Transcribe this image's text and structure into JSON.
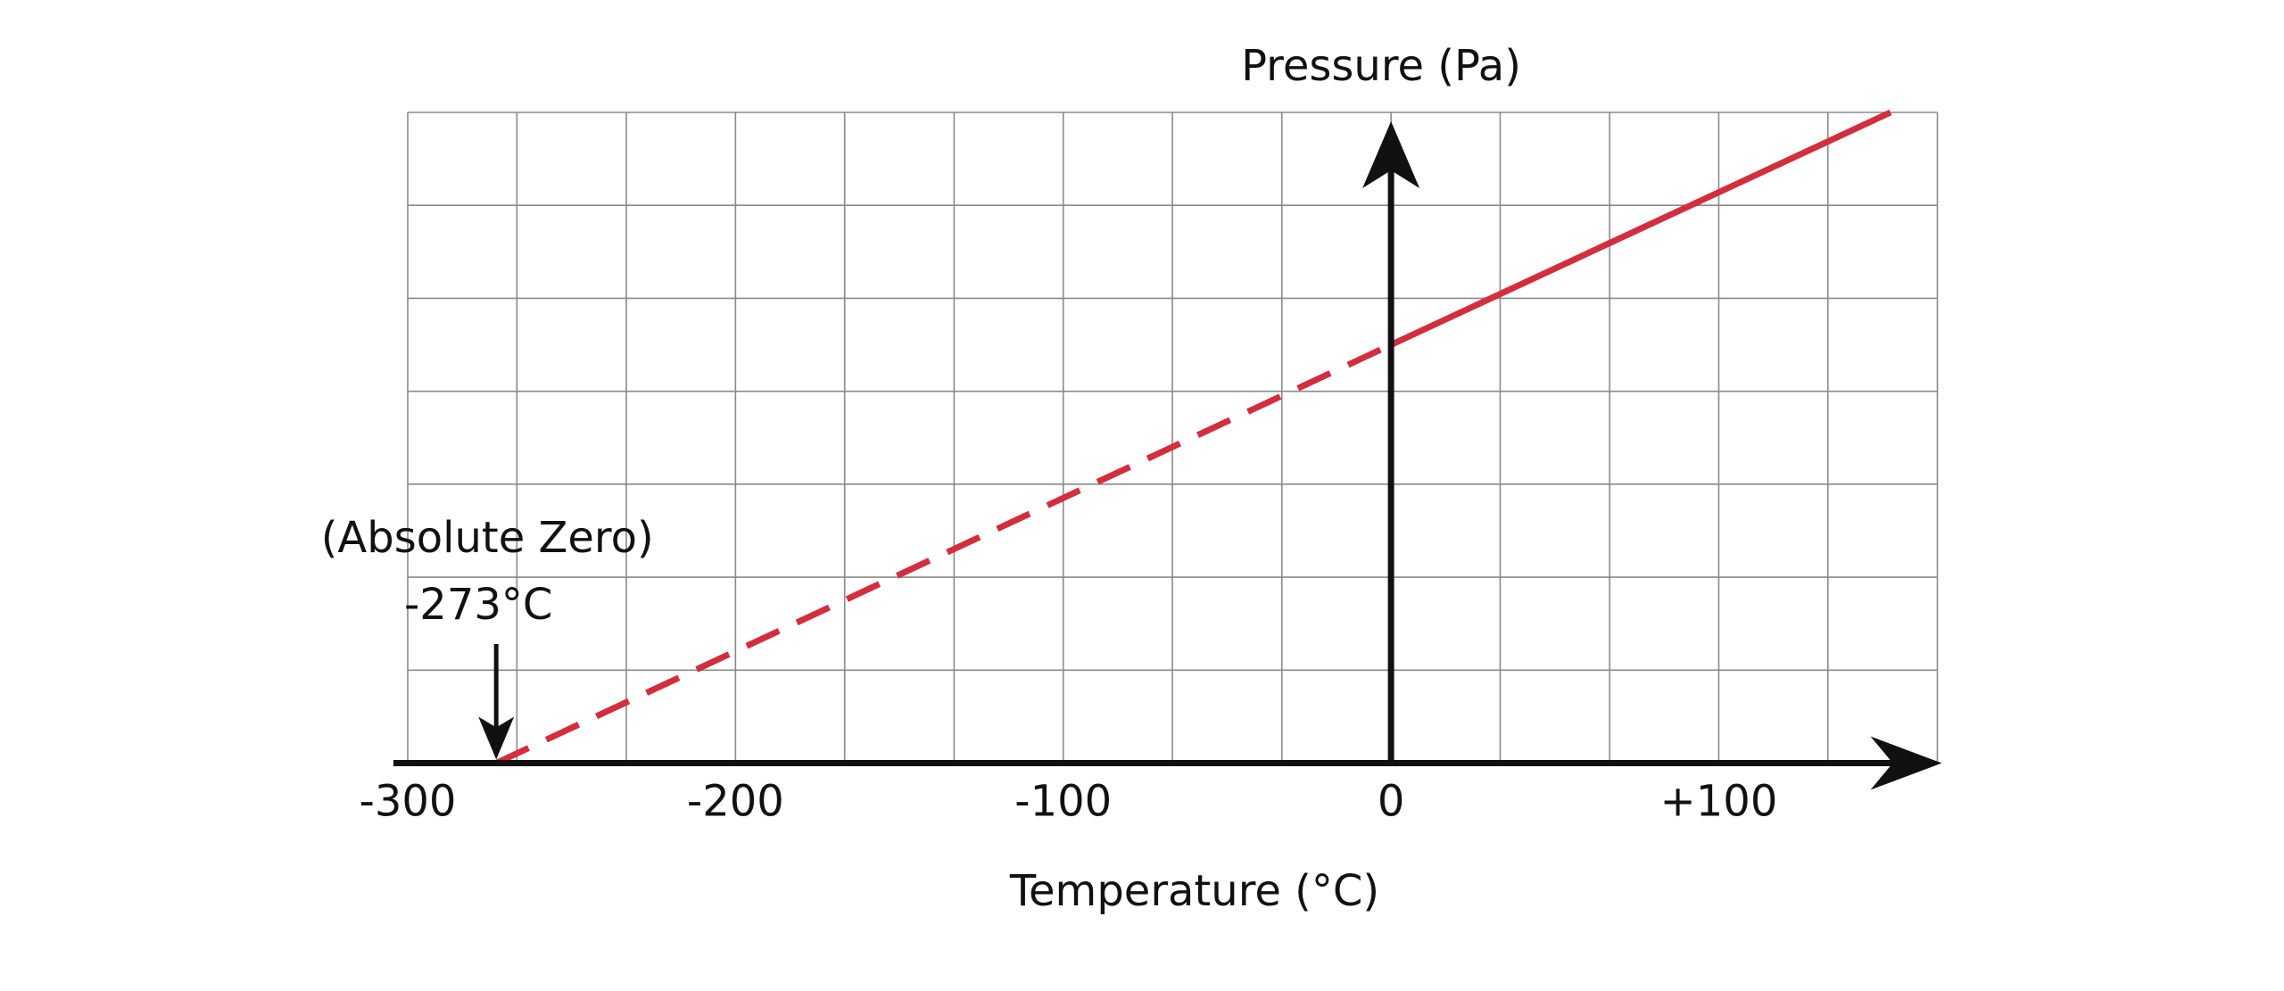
{
  "chart_data": {
    "type": "line",
    "x_label": "Temperature (°C)",
    "y_label": "Pressure (Pa)",
    "annotations": [
      "(Absolute Zero)",
      "-273°C"
    ],
    "annotation_x": -273,
    "x": [
      -273,
      0,
      152.4
    ],
    "values": [
      0,
      4.5,
      7
    ],
    "dashed": [
      true,
      false
    ],
    "color": "#d22e3e",
    "xlim": [
      -300,
      166.7
    ],
    "ylim": [
      0,
      7
    ],
    "xticks": [
      -300,
      -200,
      -100,
      0,
      {
        "value": 100,
        "label": "+100"
      }
    ],
    "grid_x": [
      -300,
      -266.7,
      -233.3,
      -200,
      -166.7,
      -133.3,
      -100,
      -66.7,
      -33.3,
      0,
      33.3,
      66.7,
      100,
      133.3,
      166.7
    ],
    "grid_y": [
      0,
      1,
      2,
      3,
      4,
      5,
      6,
      7
    ],
    "grid": true
  }
}
